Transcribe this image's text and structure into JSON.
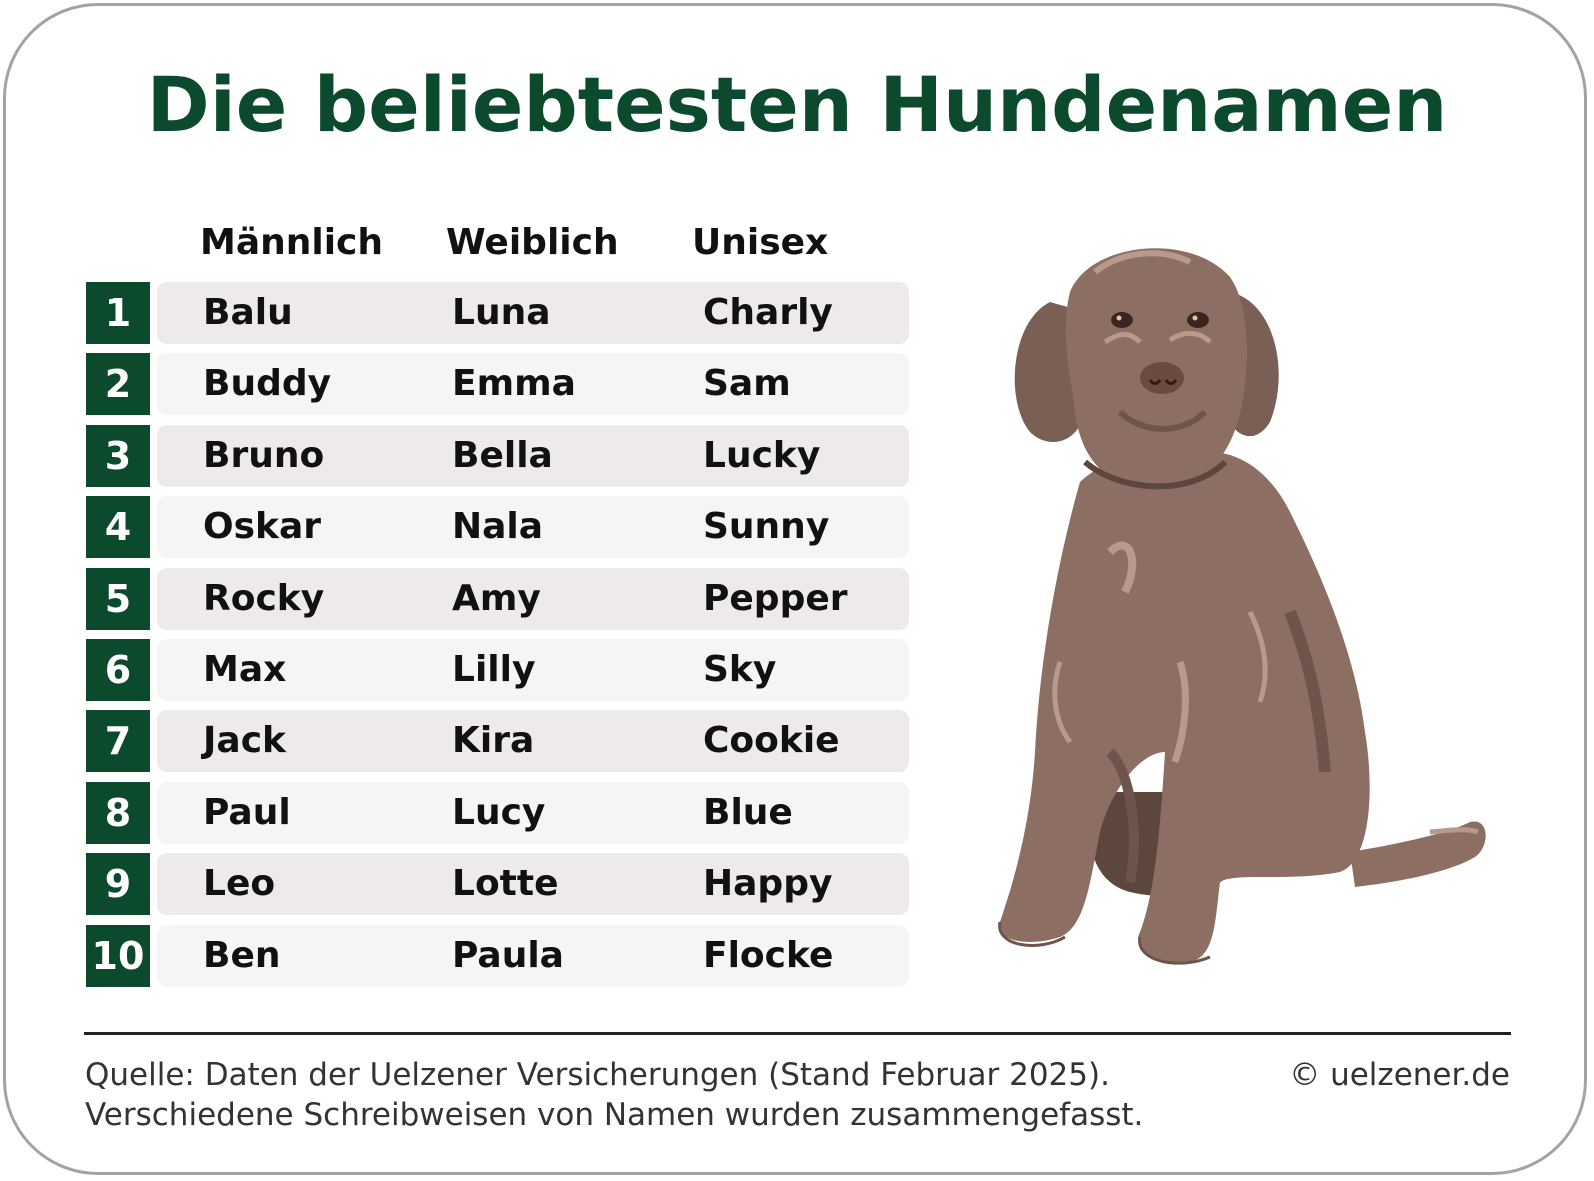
{
  "title": "Die beliebtesten Hundenamen",
  "chart_data": {
    "type": "table",
    "title": "Die beliebtesten Hundenamen",
    "columns": [
      "Männlich",
      "Weiblich",
      "Unisex"
    ],
    "rows": [
      {
        "rank": "1",
        "male": "Balu",
        "female": "Luna",
        "unisex": "Charly"
      },
      {
        "rank": "2",
        "male": "Buddy",
        "female": "Emma",
        "unisex": "Sam"
      },
      {
        "rank": "3",
        "male": "Bruno",
        "female": "Bella",
        "unisex": "Lucky"
      },
      {
        "rank": "4",
        "male": "Oskar",
        "female": "Nala",
        "unisex": "Sunny"
      },
      {
        "rank": "5",
        "male": "Rocky",
        "female": "Amy",
        "unisex": "Pepper"
      },
      {
        "rank": "6",
        "male": "Max",
        "female": "Lilly",
        "unisex": "Sky"
      },
      {
        "rank": "7",
        "male": "Jack",
        "female": "Kira",
        "unisex": "Cookie"
      },
      {
        "rank": "8",
        "male": "Paul",
        "female": "Lucy",
        "unisex": "Blue"
      },
      {
        "rank": "9",
        "male": "Leo",
        "female": "Lotte",
        "unisex": "Happy"
      },
      {
        "rank": "10",
        "male": "Ben",
        "female": "Paula",
        "unisex": "Flocke"
      }
    ]
  },
  "footer": {
    "source_line1": "Quelle: Daten der Uelzener Versicherungen (Stand Februar 2025).",
    "source_line2": "Verschiedene Schreibweisen von Namen wurden zusammengefasst.",
    "copyright": "© uelzener.de"
  },
  "colors": {
    "brand_green": "#0b4a2d",
    "row_odd": "#eeeaea",
    "row_even": "#f6f5f5",
    "dog_fur": "#8c6f62"
  },
  "illustration": {
    "icon": "dog-illustration-icon"
  }
}
